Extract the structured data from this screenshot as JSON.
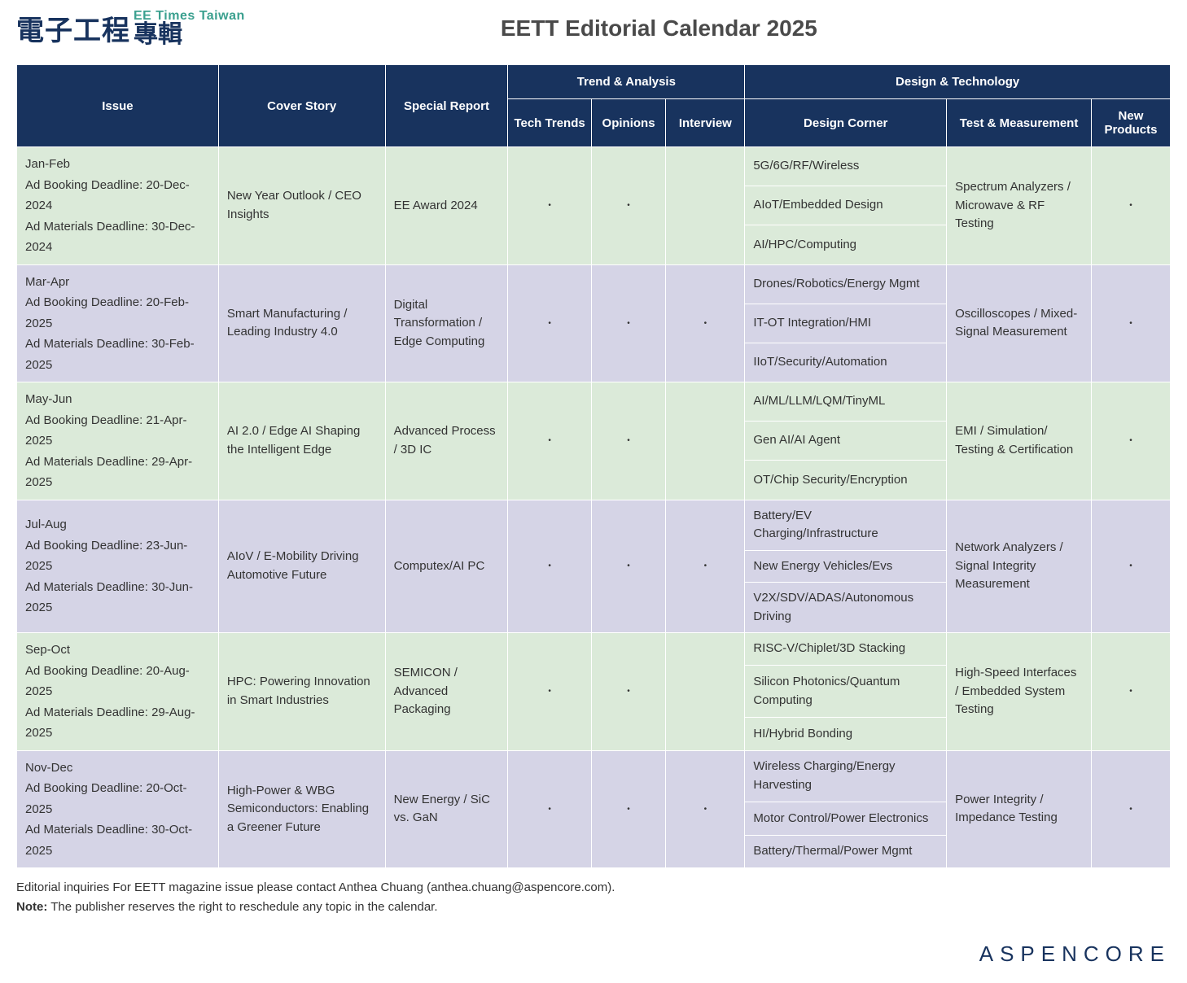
{
  "logo": {
    "cn_main": "電子工程",
    "en_top": "EE Times Taiwan",
    "cn_sub": "專輯"
  },
  "page_title": "EETT Editorial Calendar 2025",
  "headers": {
    "issue": "Issue",
    "cover": "Cover Story",
    "special": "Special Report",
    "trend_group": "Trend & Analysis",
    "tech_trends": "Tech Trends",
    "opinions": "Opinions",
    "interview": "Interview",
    "design_group": "Design & Technology",
    "design_corner": "Design Corner",
    "test_meas": "Test & Measurement",
    "new_prod": "New Products"
  },
  "rows": [
    {
      "tint": "green",
      "issue": "Jan-Feb",
      "booking": "Ad Booking Deadline: 20-Dec-2024",
      "materials": "Ad Materials Deadline: 30-Dec-2024",
      "cover": "New Year Outlook / CEO Insights",
      "special": "EE Award 2024",
      "tech": "•",
      "opin": "•",
      "intv": "",
      "design": [
        "5G/6G/RF/Wireless",
        "AIoT/Embedded Design",
        "AI/HPC/Computing"
      ],
      "test": "Spectrum Analyzers / Microwave & RF Testing",
      "newp": "•"
    },
    {
      "tint": "purple",
      "issue": "Mar-Apr",
      "booking": "Ad Booking Deadline: 20-Feb-2025",
      "materials": "Ad Materials Deadline: 30-Feb-2025",
      "cover": "Smart Manufacturing / Leading Industry 4.0",
      "special": "Digital Transformation / Edge Computing",
      "tech": "•",
      "opin": "•",
      "intv": "•",
      "design": [
        "Drones/Robotics/Energy Mgmt",
        "IT-OT Integration/HMI",
        "IIoT/Security/Automation"
      ],
      "test": "Oscilloscopes / Mixed-Signal Measurement",
      "newp": "•"
    },
    {
      "tint": "green",
      "issue": "May-Jun",
      "booking": "Ad Booking Deadline: 21-Apr-2025",
      "materials": "Ad Materials Deadline: 29-Apr-2025",
      "cover": "AI 2.0 / Edge AI Shaping the Intelligent Edge",
      "special": "Advanced Process / 3D IC",
      "tech": "•",
      "opin": "•",
      "intv": "",
      "design": [
        "AI/ML/LLM/LQM/TinyML",
        "Gen AI/AI Agent",
        "OT/Chip Security/Encryption"
      ],
      "test": "EMI / Simulation/ Testing & Certification",
      "newp": "•"
    },
    {
      "tint": "purple",
      "issue": "Jul-Aug",
      "booking": "Ad Booking Deadline: 23-Jun-2025",
      "materials": "Ad Materials Deadline: 30-Jun-2025",
      "cover": "AIoV / E-Mobility Driving Automotive Future",
      "special": "Computex/AI PC",
      "tech": "•",
      "opin": "•",
      "intv": "•",
      "design": [
        "Battery/EV Charging/Infrastructure",
        "New Energy Vehicles/Evs",
        "V2X/SDV/ADAS/Autonomous Driving"
      ],
      "test": "Network Analyzers / Signal Integrity Measurement",
      "newp": "•"
    },
    {
      "tint": "green",
      "issue": "Sep-Oct",
      "booking": "Ad Booking Deadline: 20-Aug-2025",
      "materials": "Ad Materials Deadline: 29-Aug-2025",
      "cover": "HPC: Powering Innovation in Smart Industries",
      "special": "SEMICON / Advanced Packaging",
      "tech": "•",
      "opin": "•",
      "intv": "",
      "design": [
        "RISC-V/Chiplet/3D Stacking",
        "Silicon Photonics/Quantum Computing",
        "HI/Hybrid Bonding"
      ],
      "test": "High-Speed Interfaces / Embedded System Testing",
      "newp": "•"
    },
    {
      "tint": "purple",
      "issue": "Nov-Dec",
      "booking": "Ad Booking Deadline: 20-Oct-2025",
      "materials": "Ad Materials Deadline: 30-Oct-2025",
      "cover": "High-Power & WBG Semiconductors: Enabling a Greener Future",
      "special": "New Energy / SiC vs. GaN",
      "tech": "•",
      "opin": "•",
      "intv": "•",
      "design": [
        "Wireless Charging/Energy Harvesting",
        "Motor Control/Power Electronics",
        "Battery/Thermal/Power Mgmt"
      ],
      "test": "Power Integrity / Impedance Testing",
      "newp": "•"
    }
  ],
  "footer": {
    "inquiry": "Editorial inquiries For EETT magazine issue please contact Anthea Chuang (anthea.chuang@aspencore.com).",
    "note_label": "Note:",
    "note_text": " The publisher reserves the right to reschedule any topic in the calendar."
  },
  "brand_footer": "ASPENCORE",
  "colors": {
    "header_bg": "#18335e",
    "header_fg": "#ffffff",
    "tint_green": "#dbead9",
    "tint_purple": "#d5d4e6",
    "logo_accent": "#3ba08f"
  }
}
